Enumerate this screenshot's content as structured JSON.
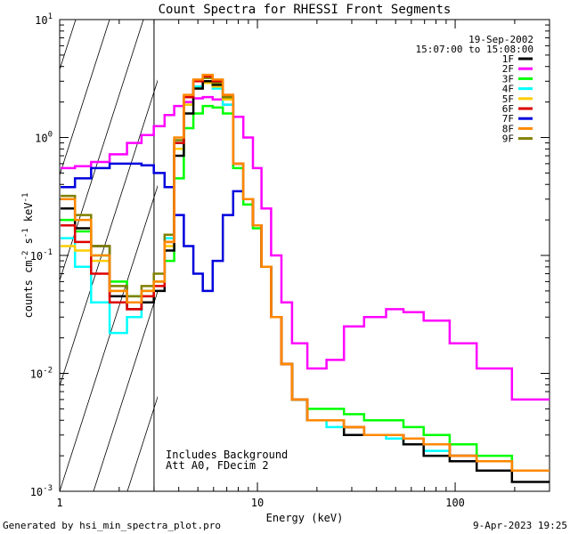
{
  "chart_data": {
    "type": "line",
    "title": "Count Spectra for RHESSI Front Segments",
    "xlabel": "Energy (keV)",
    "ylabel_parts": {
      "base": "counts cm",
      "exp1": "-2",
      "mid": " s",
      "exp2": "-1",
      "tail": " keV",
      "exp3": "-1"
    },
    "xscale": "log",
    "yscale": "log",
    "xlim": [
      1,
      300
    ],
    "ylim": [
      0.001,
      10
    ],
    "x_ticks": [
      {
        "value": 1,
        "label": "1"
      },
      {
        "value": 10,
        "label": "10"
      },
      {
        "value": 100,
        "label": "100"
      }
    ],
    "y_ticks": [
      {
        "value": 0.001,
        "base": "10",
        "exp": "-3"
      },
      {
        "value": 0.01,
        "base": "10",
        "exp": "-2"
      },
      {
        "value": 0.1,
        "base": "10",
        "exp": "-1"
      },
      {
        "value": 1,
        "base": "10",
        "exp": "0"
      },
      {
        "value": 10,
        "base": "10",
        "exp": "1"
      }
    ],
    "hatched_region": {
      "xmin": 1,
      "xmax": 3
    },
    "annotation_top": {
      "date": "19-Sep-2002",
      "time_range": "15:07:00 to 15:08:00"
    },
    "annotation_bottom": [
      "Includes Background",
      "Att A0, FDecim 2"
    ],
    "legend_position": "top-right",
    "series": [
      {
        "name": "1F",
        "color": "#000000",
        "values": [
          0.25,
          0.17,
          0.12,
          0.045,
          0.035,
          0.04,
          0.05,
          0.11,
          0.7,
          1.6,
          2.6,
          3.0,
          2.8,
          2.2,
          0.6,
          0.3,
          0.18,
          0.08,
          0.03,
          0.012,
          0.006,
          0.004,
          0.004,
          0.003,
          0.003,
          0.003,
          0.0025,
          0.002,
          0.0018,
          0.0015,
          0.0012
        ]
      },
      {
        "name": "2F",
        "color": "#ff00ff",
        "values": [
          0.55,
          0.57,
          0.62,
          0.72,
          0.9,
          1.05,
          1.25,
          1.55,
          1.85,
          2.0,
          2.15,
          2.2,
          2.1,
          1.9,
          1.5,
          1.0,
          0.55,
          0.25,
          0.1,
          0.04,
          0.018,
          0.011,
          0.013,
          0.025,
          0.03,
          0.035,
          0.033,
          0.028,
          0.018,
          0.011,
          0.006
        ]
      },
      {
        "name": "3F",
        "color": "#00ff00",
        "values": [
          0.2,
          0.16,
          0.1,
          0.06,
          0.045,
          0.05,
          0.06,
          0.09,
          0.45,
          1.2,
          1.6,
          1.85,
          1.8,
          1.6,
          0.55,
          0.27,
          0.17,
          0.08,
          0.03,
          0.012,
          0.006,
          0.005,
          0.005,
          0.0045,
          0.004,
          0.004,
          0.0035,
          0.003,
          0.0025,
          0.002,
          0.0015
        ]
      },
      {
        "name": "4F",
        "color": "#00ffff",
        "values": [
          0.14,
          0.08,
          0.04,
          0.022,
          0.03,
          0.045,
          0.06,
          0.14,
          0.9,
          1.9,
          2.7,
          2.9,
          2.6,
          1.9,
          0.6,
          0.3,
          0.18,
          0.08,
          0.03,
          0.012,
          0.006,
          0.004,
          0.0035,
          0.003,
          0.003,
          0.0028,
          0.0025,
          0.0022,
          0.002,
          0.0018,
          0.0015
        ]
      },
      {
        "name": "5F",
        "color": "#ffcc00",
        "values": [
          0.12,
          0.11,
          0.09,
          0.05,
          0.04,
          0.045,
          0.06,
          0.12,
          0.8,
          1.9,
          2.6,
          2.9,
          2.7,
          2.1,
          0.6,
          0.3,
          0.18,
          0.08,
          0.03,
          0.012,
          0.006,
          0.004,
          0.004,
          0.0035,
          0.003,
          0.003,
          0.0028,
          0.0025,
          0.002,
          0.0018,
          0.0015
        ]
      },
      {
        "name": "6F",
        "color": "#dd0000",
        "values": [
          0.18,
          0.13,
          0.07,
          0.04,
          0.035,
          0.045,
          0.055,
          0.13,
          0.9,
          2.2,
          3.0,
          3.3,
          3.0,
          2.3,
          0.6,
          0.3,
          0.18,
          0.08,
          0.03,
          0.012,
          0.006,
          0.004,
          0.004,
          0.0035,
          0.003,
          0.003,
          0.0028,
          0.0025,
          0.002,
          0.0018,
          0.0015
        ]
      },
      {
        "name": "7F",
        "color": "#0000dd",
        "values": [
          0.38,
          0.45,
          0.55,
          0.6,
          0.6,
          0.58,
          0.5,
          0.38,
          0.22,
          0.12,
          0.07,
          0.05,
          0.09,
          0.22,
          0.35,
          0.3,
          0.18,
          0.08,
          0.03,
          0.012,
          0.006,
          0.004,
          0.004,
          0.0035,
          0.003,
          0.003,
          0.0028,
          0.0025,
          0.002,
          0.0018,
          0.0015
        ]
      },
      {
        "name": "8F",
        "color": "#ff8800",
        "values": [
          0.3,
          0.2,
          0.1,
          0.05,
          0.04,
          0.05,
          0.06,
          0.13,
          1.0,
          2.3,
          3.1,
          3.4,
          3.1,
          2.3,
          0.6,
          0.3,
          0.18,
          0.08,
          0.03,
          0.012,
          0.006,
          0.004,
          0.004,
          0.0035,
          0.003,
          0.003,
          0.0028,
          0.0025,
          0.002,
          0.0018,
          0.0015
        ]
      },
      {
        "name": "9F",
        "color": "#808000",
        "values": [
          0.32,
          0.22,
          0.12,
          0.055,
          0.045,
          0.055,
          0.07,
          0.15,
          0.95,
          2.2,
          3.0,
          3.2,
          2.9,
          2.2,
          0.6,
          0.3,
          0.18,
          0.08,
          0.03,
          0.012,
          0.006,
          0.004,
          0.004,
          0.0035,
          0.003,
          0.003,
          0.0028,
          0.0025,
          0.002,
          0.0018,
          0.0015
        ]
      }
    ],
    "energies": [
      1.1,
      1.3,
      1.6,
      2.0,
      2.4,
      2.8,
      3.2,
      3.6,
      4.0,
      4.5,
      5.0,
      5.6,
      6.3,
      7.1,
      8.0,
      9.0,
      10.0,
      11.0,
      12.5,
      14.0,
      16.0,
      20.0,
      25.0,
      30.0,
      40.0,
      50.0,
      60.0,
      80.0,
      110.0,
      150.0,
      250.0
    ]
  },
  "footer": {
    "generated_by": "Generated by hsi_min_spectra_plot.pro",
    "timestamp": "9-Apr-2023 19:25"
  }
}
